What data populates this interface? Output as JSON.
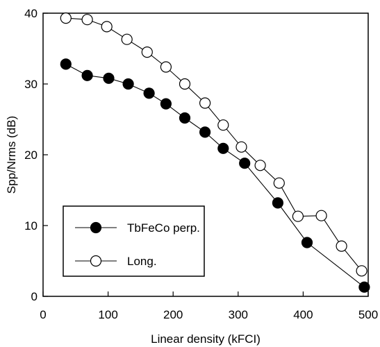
{
  "chart_data": {
    "type": "line",
    "xlabel": "Linear density (kFCI)",
    "ylabel": "Spp/Nrms (dB)",
    "xlim": [
      0,
      500
    ],
    "ylim": [
      0,
      40
    ],
    "xticks": [
      "0",
      "100",
      "200",
      "300",
      "400",
      "500"
    ],
    "yticks": [
      "0",
      "10",
      "20",
      "30",
      "40"
    ],
    "grid": false,
    "legend_position": "bottom-left",
    "series": [
      {
        "name": "TbFeCo perp.",
        "marker": "filled-circle",
        "color": "#000000",
        "x": [
          35,
          68,
          101,
          131,
          163,
          189,
          218,
          249,
          277,
          310,
          361,
          406,
          494
        ],
        "y": [
          32.8,
          31.2,
          30.8,
          30.0,
          28.7,
          27.2,
          25.2,
          23.2,
          20.9,
          18.8,
          13.2,
          7.6,
          1.3
        ]
      },
      {
        "name": "Long.",
        "marker": "open-circle",
        "color": "#000000",
        "x": [
          35,
          68,
          98,
          129,
          160,
          189,
          218,
          249,
          277,
          305,
          334,
          363,
          392,
          428,
          459,
          490
        ],
        "y": [
          39.3,
          39.1,
          38.1,
          36.3,
          34.5,
          32.4,
          30.0,
          27.3,
          24.2,
          21.1,
          18.5,
          16.0,
          11.3,
          11.4,
          7.1,
          3.6
        ]
      }
    ]
  }
}
